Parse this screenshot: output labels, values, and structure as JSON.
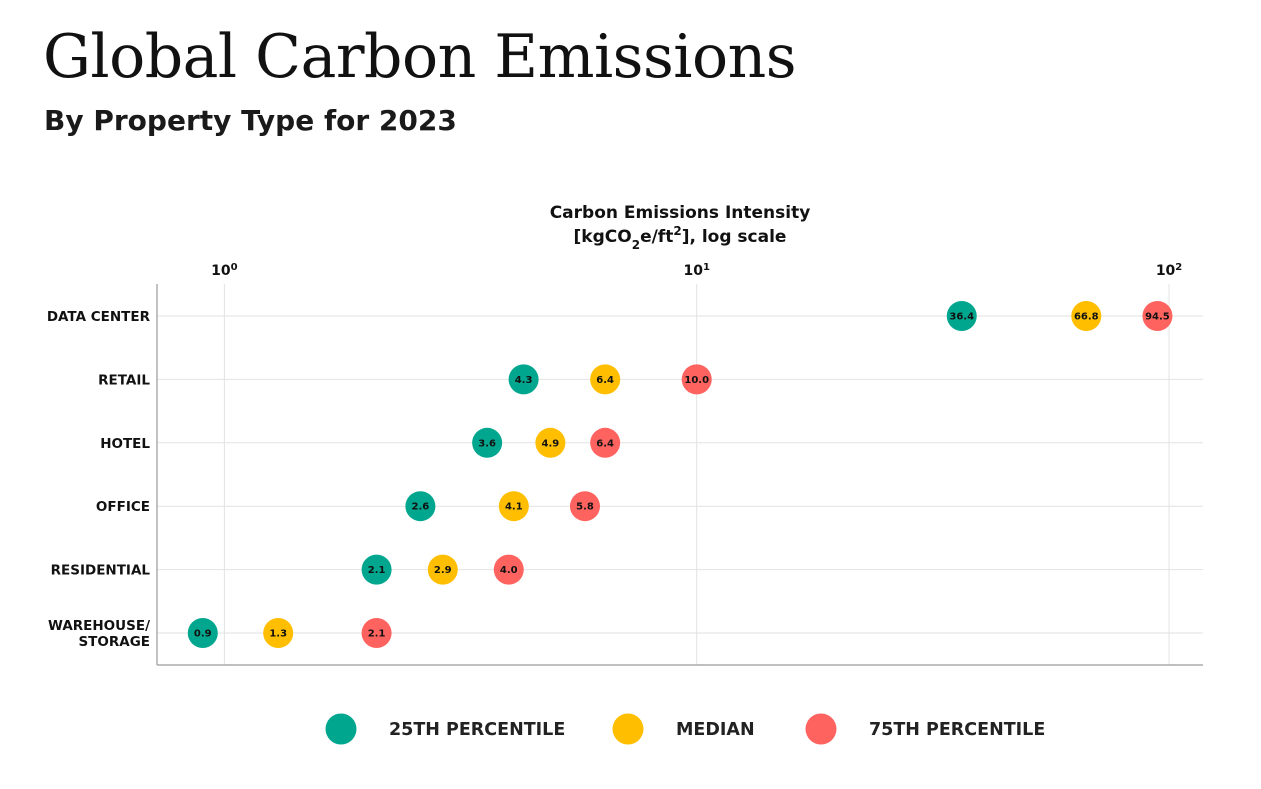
{
  "header": {
    "title": "Global Carbon Emissions",
    "subtitle": "By Property Type for 2023"
  },
  "chart_data": {
    "type": "scatter",
    "x_axis_title_line1": "Carbon Emissions Intensity",
    "x_axis_title_line2": {
      "prefix": "[kgCO",
      "sub": "2",
      "mid": "e/ft",
      "sup": "2",
      "suffix": "], log scale"
    },
    "x_scale": "log",
    "xlim": [
      0.72,
      118
    ],
    "x_ticks": [
      {
        "value": 1,
        "base": "10",
        "exp": "0"
      },
      {
        "value": 10,
        "base": "10",
        "exp": "1"
      },
      {
        "value": 100,
        "base": "10",
        "exp": "2"
      }
    ],
    "grid": true,
    "legend_position": "bottom",
    "categories": [
      [
        "DATA CENTER"
      ],
      [
        "RETAIL"
      ],
      [
        "HOTEL"
      ],
      [
        "OFFICE"
      ],
      [
        "RESIDENTIAL"
      ],
      [
        "WAREHOUSE/",
        "STORAGE"
      ]
    ],
    "series": [
      {
        "name": "25TH PERCENTILE",
        "color": "#00a78e",
        "values": [
          36.4,
          4.3,
          3.6,
          2.6,
          2.1,
          0.9
        ],
        "labels": [
          "36.4",
          "4.3",
          "3.6",
          "2.6",
          "2.1",
          "0.9"
        ]
      },
      {
        "name": "MEDIAN",
        "color": "#ffbf00",
        "values": [
          66.8,
          6.4,
          4.9,
          4.1,
          2.9,
          1.3
        ],
        "labels": [
          "66.8",
          "6.4",
          "4.9",
          "4.1",
          "2.9",
          "1.3"
        ]
      },
      {
        "name": "75TH PERCENTILE",
        "color": "#ff6360",
        "values": [
          94.5,
          10.0,
          6.4,
          5.8,
          4.0,
          2.1
        ],
        "labels": [
          "94.5",
          "10.0",
          "6.4",
          "5.8",
          "4.0",
          "2.1"
        ]
      }
    ]
  }
}
